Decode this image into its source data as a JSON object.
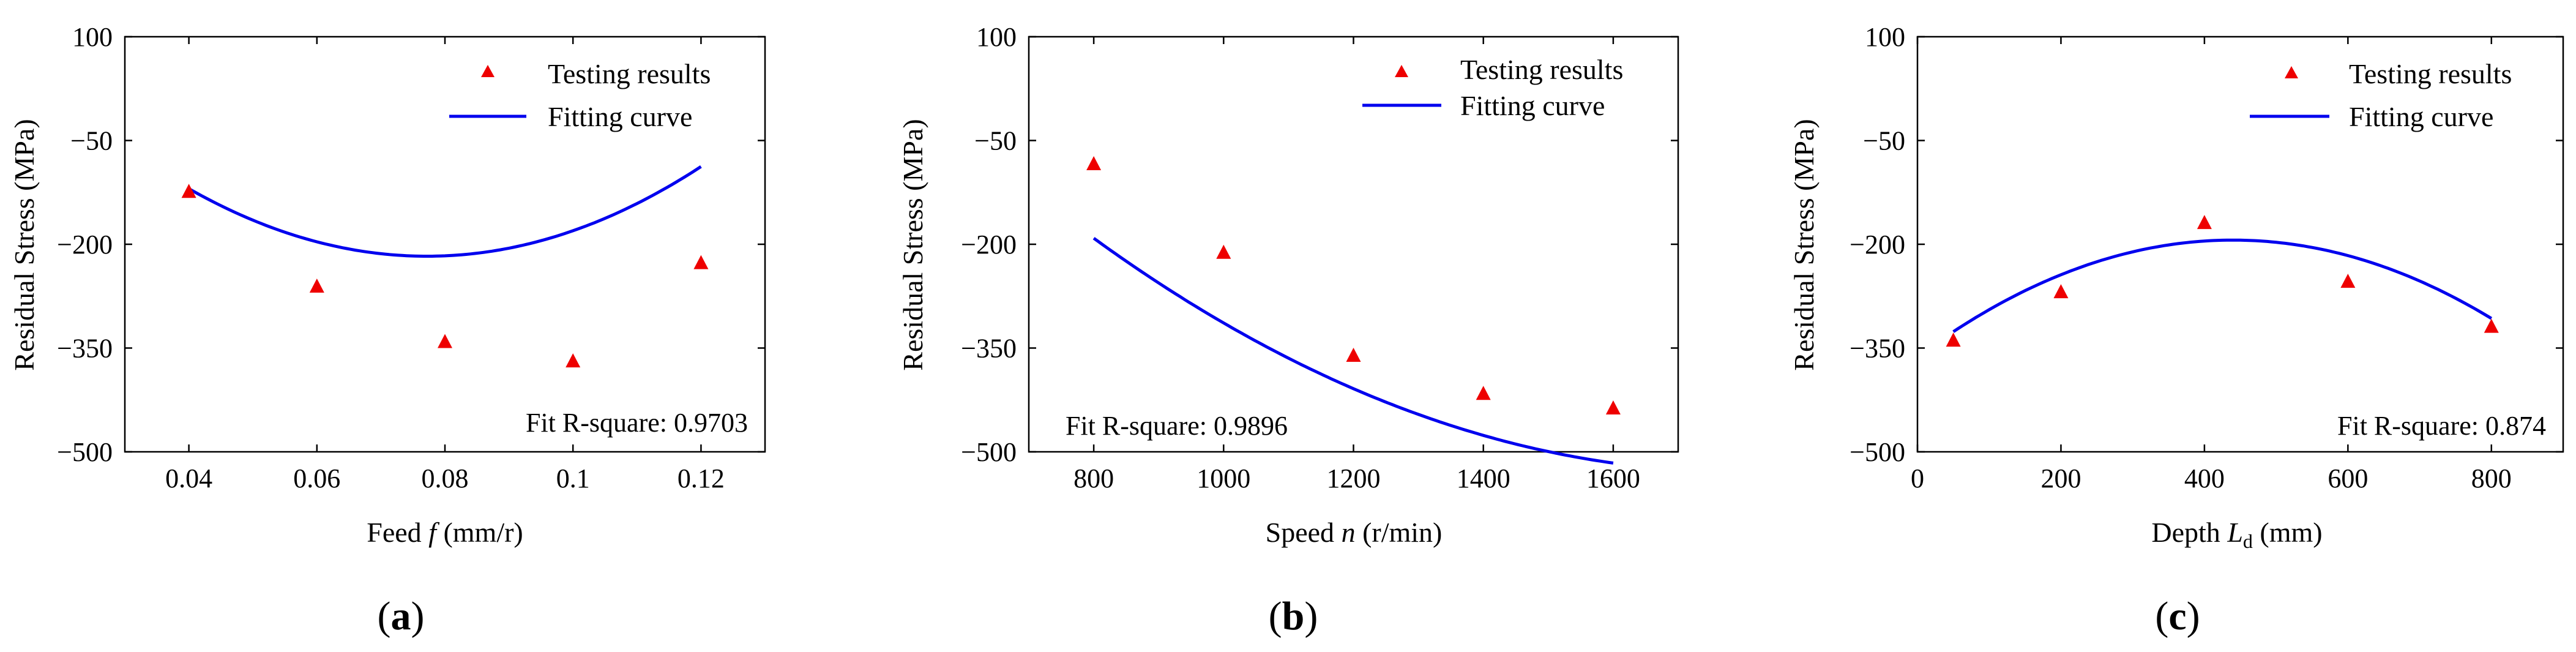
{
  "chart_data": [
    {
      "type": "scatter",
      "panel_label": "a",
      "xlabel_prefix": "Feed ",
      "xlabel_var": "f",
      "xlabel_sub": "",
      "xlabel_suffix": " (mm/r)",
      "ylabel": "Residual Stress (MPa)",
      "xlim": [
        0.03,
        0.13
      ],
      "ylim": [
        -500,
        100
      ],
      "xticks": [
        0.04,
        0.06,
        0.08,
        0.1,
        0.12
      ],
      "xtick_labels": [
        "0.04",
        "0.06",
        "0.08",
        "0.1",
        "0.12"
      ],
      "yticks": [
        100,
        -50,
        -200,
        -350,
        -500
      ],
      "ytick_labels": [
        "100",
        "−50",
        "−200",
        "−350",
        "−500"
      ],
      "legend": [
        "Testing results",
        "Fitting curve"
      ],
      "fit_text": "Fit R-square: 0.9703",
      "series": [
        {
          "name": "Testing results",
          "x": [
            0.04,
            0.06,
            0.08,
            0.1,
            0.12
          ],
          "y": [
            -125,
            -262,
            -342,
            -370,
            -228
          ]
        },
        {
          "name": "Fitting curve",
          "polynomial": [
            203.3,
            -10900,
            70625
          ],
          "x_range": [
            0.04,
            0.12
          ]
        }
      ]
    },
    {
      "type": "scatter",
      "panel_label": "b",
      "xlabel_prefix": "Speed ",
      "xlabel_var": "n",
      "xlabel_sub": "",
      "xlabel_suffix": " (r/min)",
      "ylabel": "Residual Stress (MPa)",
      "xlim": [
        700,
        1700
      ],
      "ylim": [
        -500,
        100
      ],
      "xticks": [
        800,
        1000,
        1200,
        1400,
        1600
      ],
      "xtick_labels": [
        "800",
        "1000",
        "1200",
        "1400",
        "1600"
      ],
      "yticks": [
        100,
        -50,
        -200,
        -350,
        -500
      ],
      "ytick_labels": [
        "100",
        "−50",
        "−200",
        "−350",
        "−500"
      ],
      "legend": [
        "Testing results",
        "Fitting curve"
      ],
      "fit_text": "Fit R-square: 0.9896",
      "series": [
        {
          "name": "Testing results",
          "x": [
            800,
            1000,
            1200,
            1400,
            1600
          ],
          "y": [
            -85,
            -213,
            -362,
            -417,
            -438
          ]
        },
        {
          "name": "Fitting curve",
          "polynomial": [
            573.75,
            -1.23125,
            0.00034375
          ],
          "x_range": [
            800,
            1600
          ]
        }
      ]
    },
    {
      "type": "scatter",
      "panel_label": "c",
      "xlabel_prefix": "Depth ",
      "xlabel_var": "L",
      "xlabel_sub": "d",
      "xlabel_suffix": " (mm)",
      "ylabel": "Residual Stress (MPa)",
      "xlim": [
        0,
        900
      ],
      "ylim": [
        -500,
        100
      ],
      "xticks": [
        0,
        200,
        400,
        600,
        800
      ],
      "xtick_labels": [
        "0",
        "200",
        "400",
        "600",
        "800"
      ],
      "yticks": [
        100,
        -50,
        -200,
        -350,
        -500
      ],
      "ytick_labels": [
        "100",
        "−50",
        "−200",
        "−350",
        "−500"
      ],
      "legend": [
        "Testing results",
        "Fitting curve"
      ],
      "fit_text": "Fit R-square: 0.874",
      "series": [
        {
          "name": "Testing results",
          "x": [
            50,
            200,
            400,
            600,
            800
          ],
          "y": [
            -340,
            -270,
            -170,
            -255,
            -320
          ]
        },
        {
          "name": "Fitting curve",
          "polynomial": [
            -362.5,
            0.7667,
            -0.000872
          ],
          "x_range": [
            50,
            800
          ]
        }
      ]
    }
  ],
  "colors": {
    "marker": "#ee0000",
    "curve": "#0000ee",
    "axis": "#000000"
  }
}
